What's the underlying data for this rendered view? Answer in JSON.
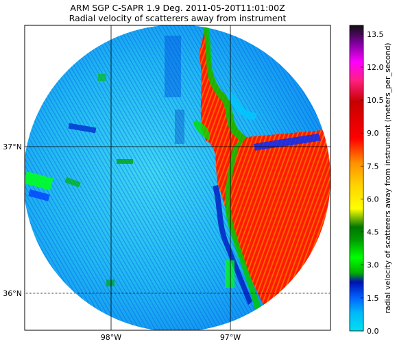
{
  "chart_data": {
    "type": "heatmap",
    "title": "ARM SGP C-SAPR 1.9 Deg. 2011-05-20T11:01:00Z",
    "subtitle": "Radial velocity of scatterers away from instrument",
    "colorbar": {
      "label": "radial velocity of scatterers away from instrument (meters_per_second)",
      "range": [
        0,
        13.9
      ],
      "ticks": [
        "0.0",
        "1.5",
        "3.0",
        "4.5",
        "6.0",
        "7.5",
        "9.0",
        "10.5",
        "12.0",
        "13.5"
      ],
      "tick_values": [
        0,
        1.5,
        3.0,
        4.5,
        6.0,
        7.5,
        9.0,
        10.5,
        12.0,
        13.5
      ],
      "placement": "right"
    },
    "x_ticks": [
      {
        "label": "98°W",
        "value": -98
      },
      {
        "label": "97°W",
        "value": -97
      }
    ],
    "y_ticks": [
      {
        "label": "37°N",
        "value": 37
      },
      {
        "label": "36°N",
        "value": 36
      }
    ],
    "xlim": [
      -98.72,
      -96.2
    ],
    "ylim": [
      35.73,
      37.85
    ],
    "radar_center": {
      "lon": -97.5,
      "lat": 36.77
    },
    "regions": [
      {
        "name": "receding",
        "approx_value": 10.0,
        "location": "east of radar"
      },
      {
        "name": "near-zero",
        "approx_value": 0.7,
        "location": "west and center"
      }
    ],
    "grid": true
  },
  "colors": {
    "cmap_stops": [
      "#00e0f0",
      "#00a8ff",
      "#0040ff",
      "#0010b0",
      "#00c000",
      "#00ff00",
      "#008800",
      "#ffff00",
      "#ffa000",
      "#ff7000",
      "#ff0000",
      "#c80000",
      "#ff00ff",
      "#a000c0",
      "#000000"
    ]
  }
}
